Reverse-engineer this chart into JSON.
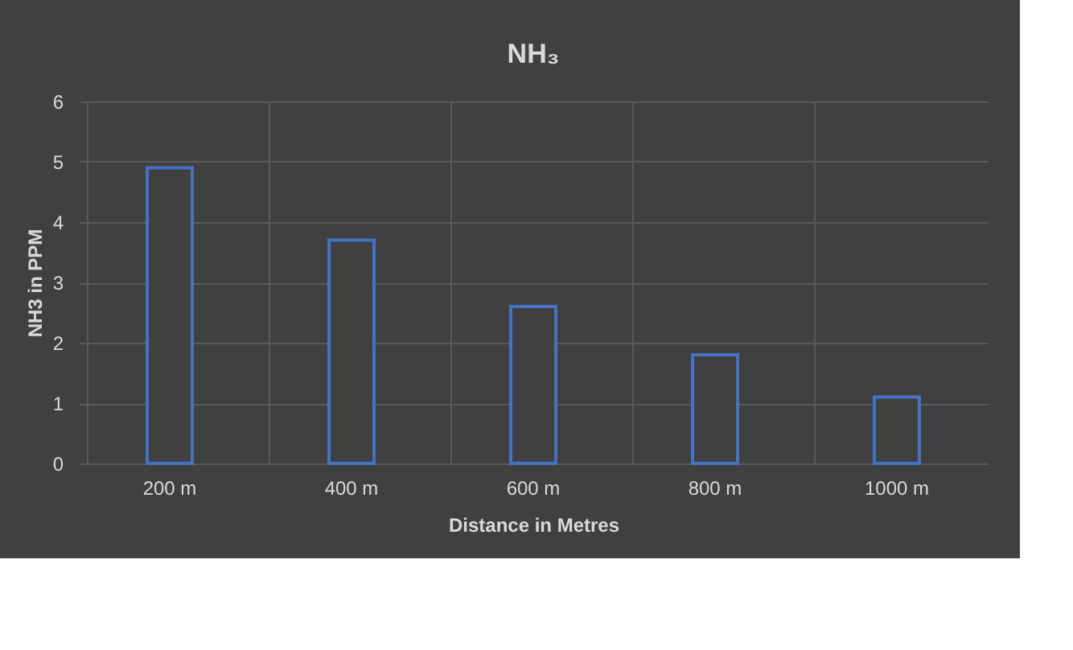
{
  "chart_data": {
    "type": "bar",
    "title": "NH₃",
    "xlabel": "Distance in Metres",
    "ylabel": "NH3 in PPM",
    "categories": [
      "200 m",
      "400 m",
      "600 m",
      "800 m",
      "1000 m"
    ],
    "series": [
      {
        "color": "#4472c4",
        "values": [
          4.9,
          3.7,
          2.6,
          1.8,
          1.1
        ]
      }
    ],
    "ylim": [
      0,
      6
    ],
    "yticks": [
      0,
      1,
      2,
      3,
      4,
      5,
      6
    ],
    "grid": true,
    "legend": false
  }
}
